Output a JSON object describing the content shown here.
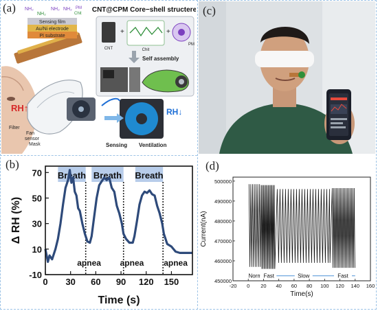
{
  "panel_labels": {
    "a": "(a)",
    "b": "(b)",
    "c": "(c)",
    "d": "(d)"
  },
  "panel_a": {
    "title": "CNT@CPM Core−shell structere",
    "nh2_a": "NH₂",
    "nh2_b": "NH₂",
    "nh2_c": "NH₂",
    "nh2_d": "NH₂",
    "pm_top": "PM",
    "chit_top": "Chit",
    "layers": [
      "Sensing film",
      "Au/Ni electrode",
      "PI substrate"
    ],
    "cnt": "CNT",
    "chit": "Chit",
    "pm": "PM",
    "self_assembly": "Self assembly",
    "rh_up": "RH↑",
    "rh_down": "RH↓",
    "filter": "Filter",
    "fan": "Fan",
    "sensor": "sensor",
    "mask": "Mask",
    "sensing": "Sensing",
    "ventilation": "Ventilation",
    "colors": {
      "rh_red": "#d62828",
      "rh_blue": "#1e6fd6",
      "sensor_green": "#2f8f3a"
    }
  },
  "panel_c": {
    "phone_icon": "smartphone-app-icon",
    "colors": {
      "background": "#dfe3e6",
      "shirt": "#2f5a45",
      "phone_screen": "#1b1f2a",
      "phone_accent": "#e64a3c"
    }
  },
  "panel_b": {
    "chart_data": {
      "type": "line",
      "ylabel": "Δ RH (%)",
      "xlabel": "Time (s)",
      "xlim": [
        0,
        175
      ],
      "ylim": [
        -10,
        75
      ],
      "xticks": [
        0,
        30,
        60,
        90,
        120,
        150
      ],
      "yticks": [
        -10,
        10,
        30,
        50,
        70
      ],
      "phases": [
        {
          "label": "Breath",
          "start": 15,
          "end": 48
        },
        {
          "label": "Breath",
          "start": 55,
          "end": 93
        },
        {
          "label": "Breath",
          "start": 107,
          "end": 140
        }
      ],
      "apnea_labels": [
        {
          "label": "apnea",
          "x": 52
        },
        {
          "label": "apnea",
          "x": 103
        },
        {
          "label": "apnea",
          "x": 155
        }
      ],
      "dividers": [
        48,
        93,
        140
      ],
      "series": [
        {
          "values": [
            [
              0,
              10
            ],
            [
              3,
              0
            ],
            [
              5,
              5
            ],
            [
              8,
              2
            ],
            [
              12,
              10
            ],
            [
              15,
              18
            ],
            [
              18,
              30
            ],
            [
              21,
              45
            ],
            [
              24,
              58
            ],
            [
              27,
              64
            ],
            [
              29,
              72
            ],
            [
              31,
              62
            ],
            [
              33,
              66
            ],
            [
              35,
              55
            ],
            [
              37,
              52
            ],
            [
              39,
              42
            ],
            [
              41,
              40
            ],
            [
              44,
              30
            ],
            [
              47,
              22
            ],
            [
              50,
              16
            ],
            [
              53,
              15
            ],
            [
              55,
              20
            ],
            [
              58,
              35
            ],
            [
              61,
              50
            ],
            [
              64,
              60
            ],
            [
              67,
              63
            ],
            [
              70,
              66
            ],
            [
              73,
              64
            ],
            [
              76,
              66
            ],
            [
              79,
              58
            ],
            [
              82,
              55
            ],
            [
              85,
              44
            ],
            [
              88,
              38
            ],
            [
              91,
              30
            ],
            [
              93,
              22
            ],
            [
              96,
              18
            ],
            [
              100,
              15
            ],
            [
              104,
              15
            ],
            [
              106,
              20
            ],
            [
              109,
              32
            ],
            [
              112,
              45
            ],
            [
              115,
              52
            ],
            [
              118,
              55
            ],
            [
              121,
              54
            ],
            [
              124,
              56
            ],
            [
              127,
              53
            ],
            [
              130,
              52
            ],
            [
              133,
              44
            ],
            [
              136,
              38
            ],
            [
              139,
              30
            ],
            [
              141,
              22
            ],
            [
              145,
              14
            ],
            [
              150,
              12
            ],
            [
              155,
              8
            ],
            [
              160,
              7
            ],
            [
              168,
              7
            ],
            [
              175,
              7
            ]
          ]
        }
      ],
      "line_color": "#2e4a7a",
      "phase_color": "#b8cdea"
    }
  },
  "panel_d": {
    "chart_data": {
      "type": "line",
      "ylabel": "Current(nA)",
      "xlabel": "Time(s)",
      "xlim": [
        -20,
        160
      ],
      "ylim": [
        450000,
        502000
      ],
      "xticks": [
        -20,
        0,
        20,
        40,
        60,
        80,
        100,
        120,
        140,
        160
      ],
      "yticks": [
        450000,
        460000,
        470000,
        480000,
        490000,
        500000
      ],
      "phases": [
        {
          "label": "Norm",
          "start": 1,
          "end": 17
        },
        {
          "label": "Fast",
          "start": 17,
          "end": 37
        },
        {
          "label": "Slow",
          "start": 37,
          "end": 108
        },
        {
          "label": "Fast",
          "start": 108,
          "end": 140
        }
      ],
      "series": [
        {
          "segments": [
            {
              "start": 1,
              "end": 17,
              "period": 2.3,
              "high": 498500,
              "low": 457000
            },
            {
              "start": 17,
              "end": 35,
              "period": 1.55,
              "high": 498000,
              "low": 456000
            },
            {
              "start": 38,
              "end": 107,
              "period": 3.6,
              "high": 496000,
              "low": 459000
            },
            {
              "start": 110,
              "end": 140,
              "period": 1.8,
              "high": 496500,
              "low": 456500
            }
          ]
        }
      ],
      "line_color": "#111111"
    }
  }
}
